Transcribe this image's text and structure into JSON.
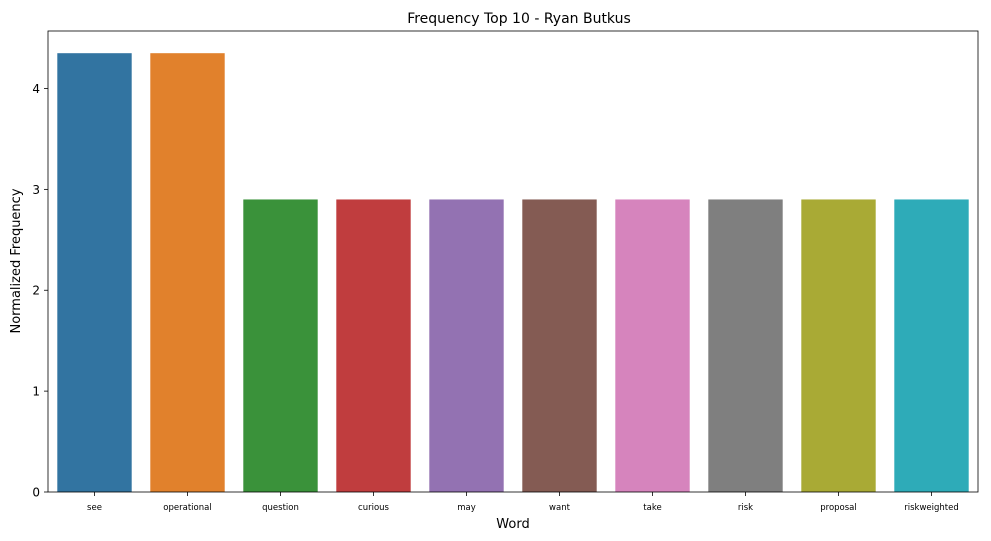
{
  "chart_data": {
    "type": "bar",
    "title": "Frequency Top 10 - Ryan Butkus",
    "xlabel": "Word",
    "ylabel": "Normalized Frequency",
    "categories": [
      "see",
      "operational",
      "question",
      "curious",
      "may",
      "want",
      "take",
      "risk",
      "proposal",
      "riskweighted"
    ],
    "values": [
      4.35,
      4.35,
      2.9,
      2.9,
      2.9,
      2.9,
      2.9,
      2.9,
      2.9,
      2.9
    ],
    "colors": [
      "#3274a1",
      "#e1812c",
      "#3a923a",
      "#c03d3e",
      "#9372b2",
      "#845b53",
      "#d684bd",
      "#7f7f7f",
      "#a9aa35",
      "#2eabb8"
    ],
    "ylim": [
      0,
      4.57
    ],
    "yticks": [
      0,
      1,
      2,
      3,
      4
    ],
    "grid": false,
    "legend": "none"
  }
}
